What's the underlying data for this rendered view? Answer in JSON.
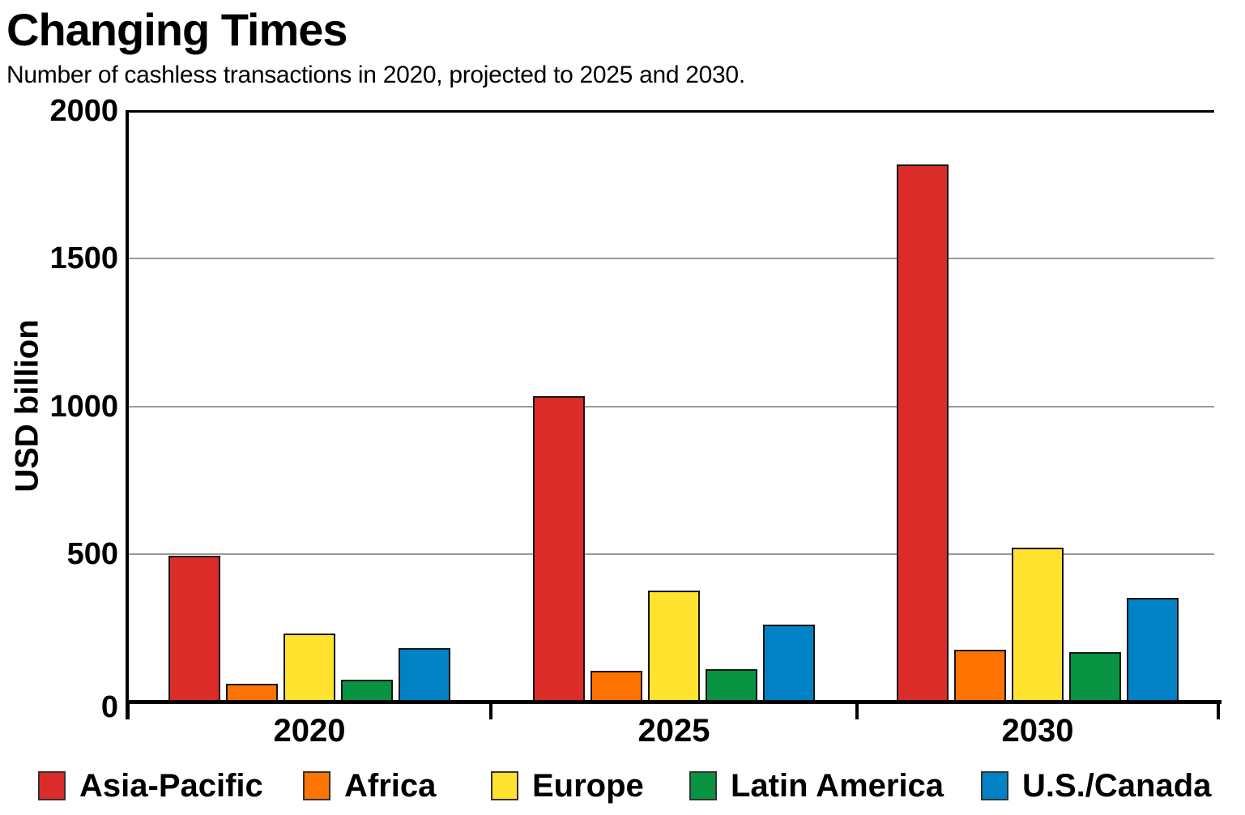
{
  "header": {
    "title": "Changing Times",
    "subtitle": "Number of cashless transactions in 2020, projected to 2025 and 2030."
  },
  "chart_data": {
    "type": "bar",
    "title": "Changing Times",
    "subtitle": "Number of cashless transactions in 2020, projected to 2025 and 2030.",
    "categories": [
      "2020",
      "2025",
      "2030"
    ],
    "series": [
      {
        "name": "Asia-Pacific",
        "color": "#DC2C2A",
        "values": [
          494,
          1035,
          1818
        ]
      },
      {
        "name": "Africa",
        "color": "#FF7300",
        "values": [
          60,
          105,
          175
        ]
      },
      {
        "name": "Europe",
        "color": "#FFE32E",
        "values": [
          230,
          376,
          522
        ]
      },
      {
        "name": "Latin America",
        "color": "#089442",
        "values": [
          73,
          111,
          168
        ]
      },
      {
        "name": "U.S./Canada",
        "color": "#0082C4",
        "values": [
          182,
          260,
          351
        ]
      }
    ],
    "ylabel": "USD billion",
    "xlabel": "",
    "ylim": [
      0,
      2000
    ],
    "yticks": [
      0,
      500,
      1000,
      1500,
      2000
    ],
    "grid": true,
    "gridline_color": "#9a9a9a",
    "bar_border_color": "#151515",
    "legend_position": "bottom"
  }
}
